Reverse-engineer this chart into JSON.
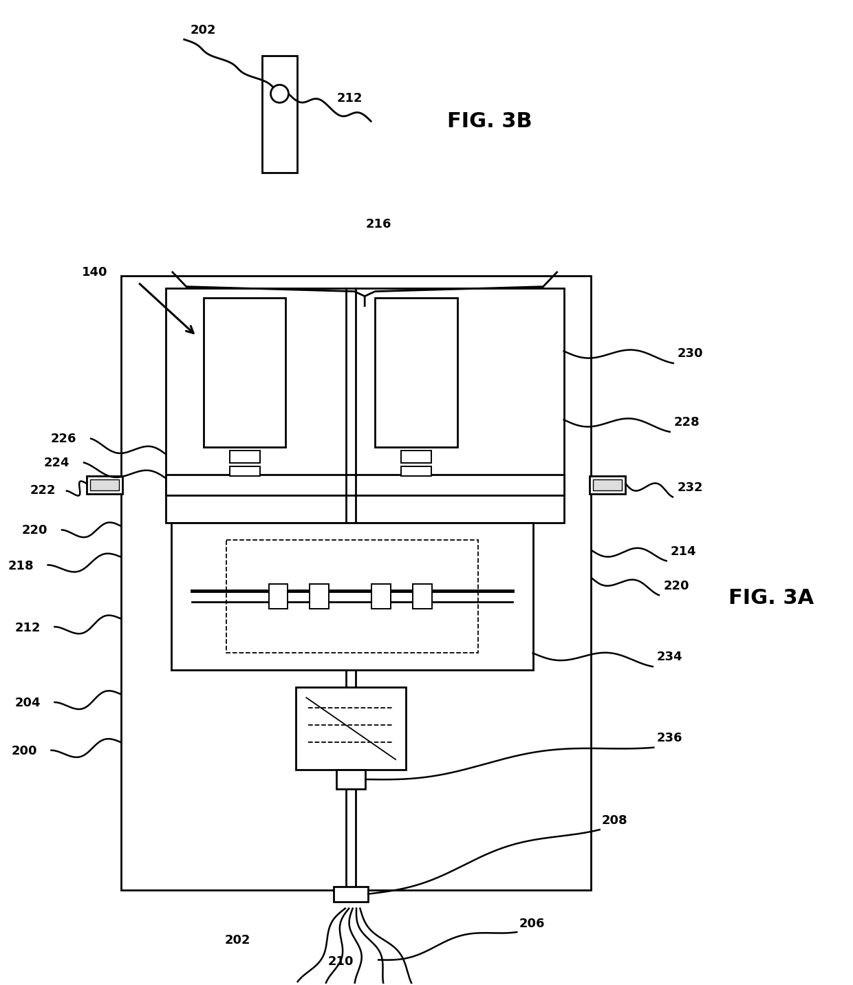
{
  "fig_width": 12.4,
  "fig_height": 14.32,
  "dpi": 100,
  "bg_color": "#ffffff",
  "line_color": "#000000"
}
